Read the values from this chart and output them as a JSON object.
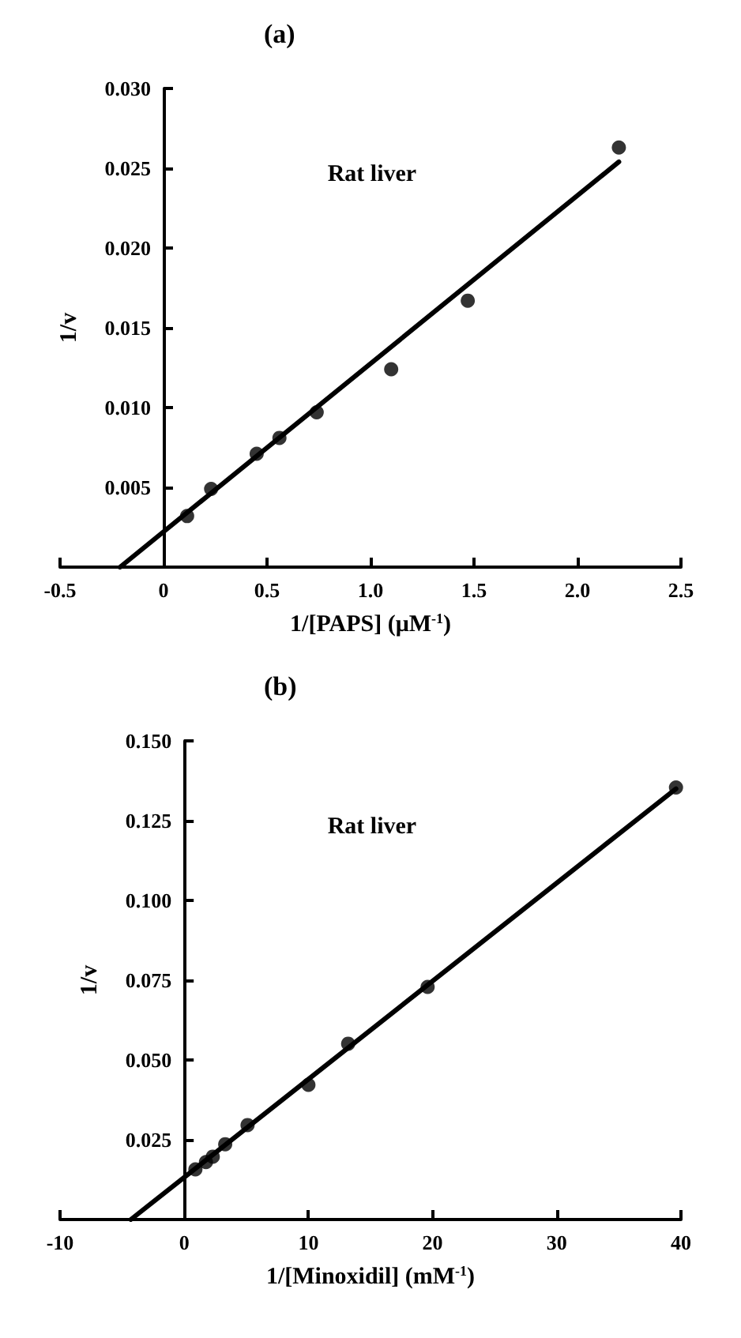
{
  "chart_data": [
    {
      "type": "scatter",
      "title": "(a)",
      "xlabel": "1/[PAPS] (μM$^{-1}$)",
      "ylabel": "1/v",
      "annotations": [
        "Rat liver"
      ],
      "marker": "circle",
      "grid": false,
      "xlim": [
        -0.5,
        2.5
      ],
      "ylim": [
        0,
        0.03
      ],
      "xticks": [
        {
          "value": -0.5,
          "label": "-0.5"
        },
        0,
        0.5,
        {
          "value": 1,
          "label": "1.0"
        },
        1.5,
        {
          "value": 2,
          "label": "2.0"
        },
        2.5
      ],
      "yticks": [
        0.005,
        {
          "value": 0.01,
          "label": "0.010"
        },
        0.015,
        {
          "value": 0.02,
          "label": "0.020"
        },
        0.025,
        {
          "value": 0.03,
          "label": "0.030"
        }
      ],
      "series": [
        {
          "color": "#000000",
          "x": [
            0.114,
            0.23,
            0.45,
            0.56,
            0.74,
            1.1,
            1.47,
            2.2
          ],
          "values": [
            0.0032,
            0.0049,
            0.0071,
            0.0081,
            0.0097,
            0.0124,
            0.0167,
            0.0263
          ]
        },
        {
          "type": "line",
          "marker": "none",
          "line_style": "solid",
          "color": "#000000",
          "x": [
            -0.21,
            2.2
          ],
          "values": [
            0,
            0.0254
          ]
        }
      ]
    },
    {
      "type": "scatter",
      "title": "(b)",
      "xlabel": "1/[Minoxidil] (mM$^{-1}$)",
      "ylabel": "1/v",
      "annotations": [
        "Rat liver"
      ],
      "marker": "circle",
      "grid": false,
      "xlim": [
        -10,
        40
      ],
      "ylim": [
        0,
        0.15
      ],
      "xticks": [
        -10,
        0,
        10,
        20,
        30,
        40
      ],
      "yticks": [
        0.025,
        {
          "value": 0.05,
          "label": "0.050"
        },
        0.075,
        {
          "value": 0.1,
          "label": "0.100"
        },
        0.125,
        {
          "value": 0.15,
          "label": "0.150"
        }
      ],
      "series": [
        {
          "color": "#000000",
          "x": [
            0.9,
            1.75,
            2.3,
            3.3,
            5.1,
            10,
            13.2,
            19.6,
            39.6
          ],
          "values": [
            0.0157,
            0.018,
            0.0197,
            0.0236,
            0.0296,
            0.0422,
            0.0551,
            0.0729,
            0.1354
          ]
        },
        {
          "type": "line",
          "marker": "none",
          "line_style": "solid",
          "color": "#000000",
          "x": [
            -4.3,
            39.6
          ],
          "values": [
            0,
            0.135
          ]
        }
      ]
    }
  ]
}
